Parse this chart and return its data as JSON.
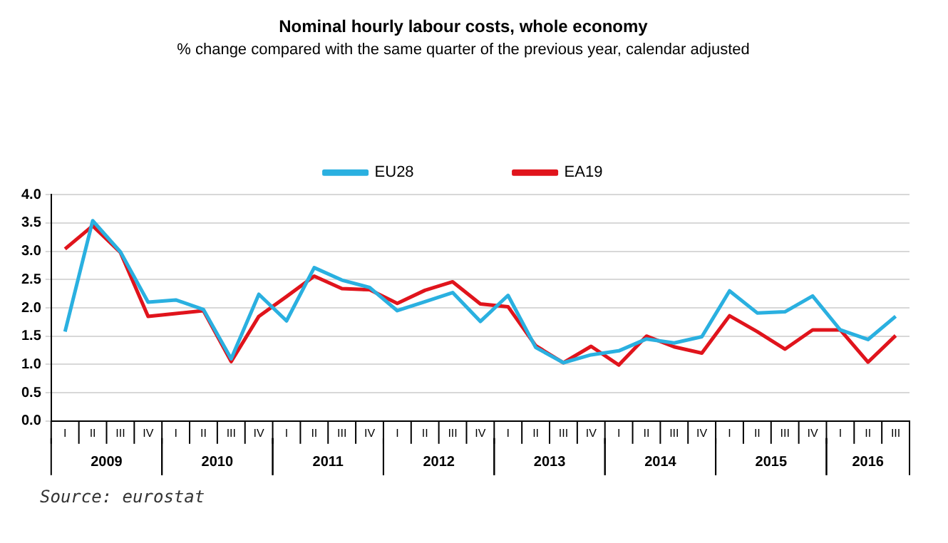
{
  "chart_data": {
    "type": "line",
    "title": "Nominal hourly labour costs, whole economy",
    "subtitle": "% change compared with the same quarter of the previous year, calendar adjusted",
    "categories": [
      "I",
      "II",
      "III",
      "IV",
      "I",
      "II",
      "III",
      "IV",
      "I",
      "II",
      "III",
      "IV",
      "I",
      "II",
      "III",
      "IV",
      "I",
      "II",
      "III",
      "IV",
      "I",
      "II",
      "III",
      "IV",
      "I",
      "II",
      "III",
      "IV",
      "I",
      "II",
      "III"
    ],
    "series": [
      {
        "name": "EU28",
        "color": "#2ab0e0",
        "values": [
          1.58,
          3.54,
          2.99,
          2.1,
          2.14,
          1.97,
          1.1,
          2.24,
          1.77,
          2.71,
          2.49,
          2.36,
          1.95,
          2.11,
          2.27,
          1.76,
          2.22,
          1.3,
          1.03,
          1.17,
          1.24,
          1.45,
          1.38,
          1.49,
          2.3,
          1.91,
          1.93,
          2.21,
          1.61,
          1.44,
          1.85
        ]
      },
      {
        "name": "EA19",
        "color": "#e0141c",
        "values": [
          3.04,
          3.45,
          2.98,
          1.85,
          1.9,
          1.95,
          1.05,
          1.85,
          2.2,
          2.56,
          2.34,
          2.32,
          2.08,
          2.31,
          2.46,
          2.07,
          2.02,
          1.33,
          1.03,
          1.32,
          0.99,
          1.5,
          1.31,
          1.2,
          1.86,
          1.58,
          1.27,
          1.61,
          1.61,
          1.04,
          1.51
        ]
      }
    ],
    "ylim": [
      0,
      4
    ],
    "yticks": [
      {
        "value": 0,
        "label": "0.0"
      },
      0.5,
      {
        "value": 1,
        "label": "1.0"
      },
      1.5,
      {
        "value": 2,
        "label": "2.0"
      },
      2.5,
      {
        "value": 3,
        "label": "3.0"
      },
      3.5,
      {
        "value": 4,
        "label": "4.0"
      }
    ],
    "grid": "y",
    "legend": "top",
    "marker": "none",
    "line_style": "solid",
    "annotations": [
      "2009",
      "2010",
      "2011",
      "2012",
      "2013",
      "2014",
      "2015",
      "2016",
      "Source: eurostat"
    ]
  }
}
